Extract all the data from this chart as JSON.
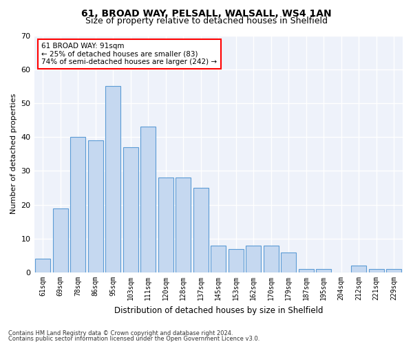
{
  "title1": "61, BROAD WAY, PELSALL, WALSALL, WS4 1AN",
  "title2": "Size of property relative to detached houses in Shelfield",
  "xlabel": "Distribution of detached houses by size in Shelfield",
  "ylabel": "Number of detached properties",
  "categories": [
    "61sqm",
    "69sqm",
    "78sqm",
    "86sqm",
    "95sqm",
    "103sqm",
    "111sqm",
    "120sqm",
    "128sqm",
    "137sqm",
    "145sqm",
    "153sqm",
    "162sqm",
    "170sqm",
    "179sqm",
    "187sqm",
    "195sqm",
    "204sqm",
    "212sqm",
    "221sqm",
    "229sqm"
  ],
  "values": [
    4,
    19,
    40,
    39,
    55,
    37,
    43,
    28,
    28,
    25,
    8,
    7,
    8,
    8,
    6,
    1,
    1,
    0,
    2,
    1,
    1
  ],
  "bar_color": "#c5d8f0",
  "bar_edge_color": "#5b9bd5",
  "annotation_title": "61 BROAD WAY: 91sqm",
  "annotation_line1": "← 25% of detached houses are smaller (83)",
  "annotation_line2": "74% of semi-detached houses are larger (242) →",
  "ylim": [
    0,
    70
  ],
  "yticks": [
    0,
    10,
    20,
    30,
    40,
    50,
    60,
    70
  ],
  "background_color": "#eef2fa",
  "footer1": "Contains HM Land Registry data © Crown copyright and database right 2024.",
  "footer2": "Contains public sector information licensed under the Open Government Licence v3.0."
}
